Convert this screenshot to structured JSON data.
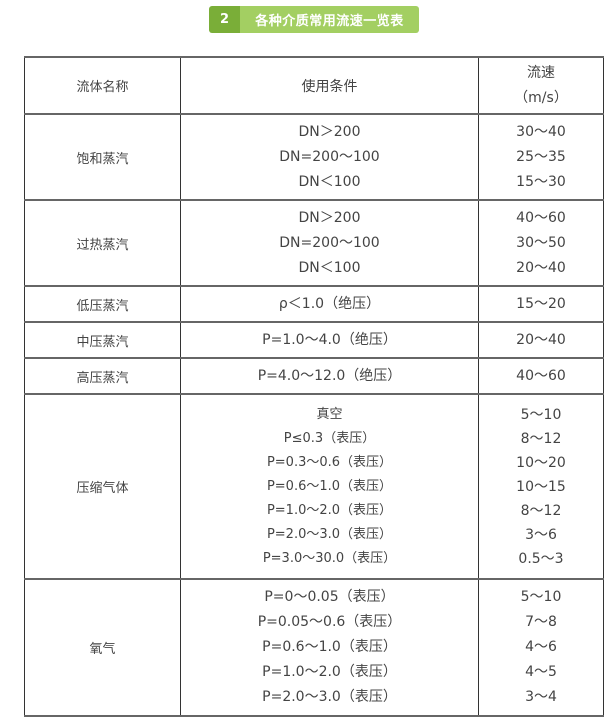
{
  "title": {
    "number": "2",
    "text": "各种介质常用流速一览表",
    "colors": {
      "number_bg": "#7aae38",
      "text_bg": "#a3cf62"
    }
  },
  "header": {
    "name": "流体名称",
    "condition": "使用条件",
    "speed": "流速",
    "unit": "（m/s）"
  },
  "rows": [
    {
      "name": "饱和蒸汽",
      "conditions": [
        "DN＞200",
        "DN=200～100",
        "DN＜100"
      ],
      "speeds": [
        "30～40",
        "25～35",
        "15～30"
      ]
    },
    {
      "name": "过热蒸汽",
      "conditions": [
        "DN＞200",
        "DN=200～100",
        "DN＜100"
      ],
      "speeds": [
        "40～60",
        "30～50",
        "20～40"
      ]
    },
    {
      "name": "低压蒸汽",
      "conditions": [
        "ρ＜1.0（绝压）"
      ],
      "speeds": [
        "15～20"
      ]
    },
    {
      "name": "中压蒸汽",
      "conditions": [
        "P=1.0～4.0（绝压）"
      ],
      "speeds": [
        "20～40"
      ]
    },
    {
      "name": "高压蒸汽",
      "conditions": [
        "P=4.0～12.0（绝压）"
      ],
      "speeds": [
        "40～60"
      ]
    },
    {
      "name": "压缩气体",
      "conditions": [
        "真空",
        "P≤0.3（表压）",
        "P=0.3～0.6（表压）",
        "P=0.6～1.0（表压）",
        "P=1.0～2.0（表压）",
        "P=2.0～3.0（表压）",
        "P=3.0～30.0（表压）"
      ],
      "speeds": [
        "5～10",
        "8～12",
        "10～20",
        "10～15",
        "8～12",
        "3～6",
        "0.5～3"
      ]
    },
    {
      "name": "氧气",
      "conditions": [
        "P=0～0.05（表压）",
        "P=0.05～0.6（表压）",
        "P=0.6～1.0（表压）",
        "P=1.0～2.0（表压）",
        "P=2.0～3.0（表压）"
      ],
      "speeds": [
        "5～10",
        "7～8",
        "4～6",
        "4～5",
        "3～4"
      ]
    }
  ]
}
